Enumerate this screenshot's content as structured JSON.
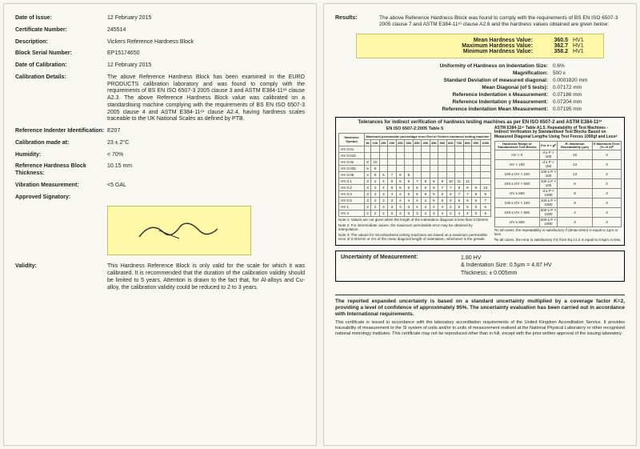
{
  "left": {
    "date_issue_label": "Date of Issue:",
    "date_issue": "12 February 2015",
    "cert_no_label": "Certificate Number:",
    "cert_no": "245514",
    "desc_label": "Description:",
    "desc": "Vickers Reference Hardness Block",
    "serial_label": "Block Serial Number:",
    "serial": "EP15174650",
    "date_cal_label": "Date of Calibration:",
    "date_cal": "12 February 2015",
    "cal_details_label": "Calibration Details:",
    "cal_details": "The above Reference Hardness Block has been examined in the EURO PRODUCTS calibration laboratory and was found to comply with the requirements of BS EN ISO 6507-3 2005 clause 3 and ASTM E384-11ᵉ¹ clause A2.3. The above Reference Hardness Block value was calibrated on a standardising machine complying with the requirements of BS EN ISO 6507-3 2005 clause 4 and ASTM E384-11ᵉ¹ clause A2.4, having hardness scales traceable to the UK National Scales as defined by PTB.",
    "indenter_label": "Reference Indenter Identification:",
    "indenter": "E207",
    "cal_at_label": "Calibration made at:",
    "cal_at": "23 ± 2°C",
    "humidity_label": "Humidity:",
    "humidity": "< 70%",
    "thickness_label": "Reference Hardness Block Thickness:",
    "thickness": "10.15 mm",
    "vib_label": "Vibration Measurement:",
    "vib": "<5 GAL",
    "sig_label": "Approved Signatory:",
    "validity_label": "Validity:",
    "validity": "This Hardness Reference Block is only valid for the scale for which it was calibrated. It is recommended that the duration of the calibration validity should be limited to 5 years. Attention is drawn to the fact that, for Al-alloys and Cu-alloy, the calibration validity could be reduced to 2 to 3 years."
  },
  "right": {
    "results_label": "Results:",
    "results_text": "The above Reference Hardness Block was found to comply with the requirements of BS EN ISO 6507-3 2005 clause 7 and ASTM E384-11ᵉ¹ clause A2.6 and the hardness values obtained are given below:",
    "mean_label": "Mean Hardness Value:",
    "mean_val": "360.5",
    "mean_unit": "HV1",
    "max_label": "Maximum Hardness Value:",
    "max_val": "362.7",
    "max_unit": "HV1",
    "min_label": "Minimum Hardness Value:",
    "min_val": "358.2",
    "min_unit": "HV1",
    "uniformity_label": "Uniformity of Hardness on Indentation Size:",
    "uniformity": "0.6%",
    "mag_label": "Magnification:",
    "mag": "500 x",
    "sd_label": "Standard Deviation of measured diagonal:",
    "sd": "0.0001820 mm",
    "meandiag_label": "Mean Diagonal (of 5 tests):",
    "meandiag": "0.07172 mm",
    "refx_label": "Reference Indentation x Measurement:",
    "refx": "0.07186 mm",
    "refy_label": "Reference Indentation y Measurement:",
    "refy": "0.07204 mm",
    "refmean_label": "Reference Indentation Mean Measurement:",
    "refmean": "0.07195 mm",
    "tol_title": "Tolerances for indirect verification of hardness testing machines as per EN ISO 6507-2 and ASTM E384-11ᵉ¹",
    "iso_title": "EN ISO 6507-2:2005 Table 5",
    "astm_title": "ASTM E384-11ᵉ¹ Table A1.5. Repeatability of Test Machines - Indirect Verification by Standardised Test Blocks Based on Measured Diagonal Lengths Using Test Forces 1000gf and Lessᴬ",
    "iso_header_top": "Maximum permissible percentage error Erel of Vickers hardness testing machine",
    "iso_symbol_head": "Hardness Symbol",
    "iso_rows": [
      "HV 0.01",
      "HV 0.015",
      "HV 0.02",
      "HV 0.025",
      "HV 0.05",
      "HV 0.1",
      "HV 0.2",
      "HV 0.3",
      "HV 0.5",
      "HV 1",
      "HV 2"
    ],
    "iso_cols": [
      "50",
      "100",
      "150",
      "200",
      "250",
      "300",
      "350",
      "400",
      "450",
      "500",
      "600",
      "700",
      "800",
      "900",
      "1000"
    ],
    "iso_note1": "Note 1: Values are not given when the length of the indentation diagonal is less than 0.020mm",
    "iso_note2": "Note 2: For intermediate values, the maximum permissible error may be obtained by interpolation.",
    "iso_note3": "Note 3: The values for microhardness testing machines are based on a maximum permissible error of 0.001mm or 2% of the mean diagonal length of indentation, whichever is the greater.",
    "astm_header": [
      "Hardness Range of Standardised Test Blocks",
      "For d < gᴮ",
      "R₁ Maximum Repeatability (μm)",
      "E Maximum Error (% of d)ᴮ"
    ],
    "astm_rows": [
      [
        "HV > 0",
        "d ≤ P × 100",
        "15",
        "3"
      ],
      [
        "HV < 100",
        "d ≤ P × 150",
        "13",
        "3"
      ],
      [
        "100 ≤ HV < 240",
        "100 ≤ P × 100",
        "13",
        "2"
      ],
      [
        "240 ≤ HV < 600",
        "100 ≤ P × 100",
        "5",
        "2"
      ],
      [
        "HV ≥ 600",
        "d ≤ P × 1000",
        "8",
        "3"
      ],
      [
        "100 ≤ HV < 240",
        "100 ≤ P × 1000",
        "9",
        "3"
      ],
      [
        "240 ≤ HV < 600",
        "500 ≤ P × 1000",
        "4",
        "3"
      ],
      [
        "HV ≥ 600",
        "500 ≤ P × 1000",
        "3",
        "3"
      ]
    ],
    "astm_footA": "ᴬIn all cases, the repeatability is satisfactory if (dmax-dmin) is equal to 1μm or less.",
    "astm_footB": "ᴮIn all cases, the error is satisfactory if E from Eq A1.2 is equal to 0.5μm or less.",
    "uom_label": "Uncertainty of Measurement:",
    "uom_line1": "1.80 HV",
    "uom_line2": "& Indentation Size: 0.5μm = 4.87 HV",
    "uom_line3": "Thickness: ± 0.005mm",
    "footer_bold": "The reported expanded uncertainty is based on a standard uncertainty multiplied by a coverage factor K=2, providing a level of confidence of approximately 95%. The uncertainty evaluation has been carried out in accordance with International requirements.",
    "footer_small": "This certificate is issued in accordance with the laboratory accreditation requirements of the United Kingdom Accreditation Service. It provides traceability of measurement to the SI system of units and/or to units of measurement realised at the National Physical Laboratory or other recognised national metrology institutes. This certificate may not be reproduced other than in full, except with the prior written approval of the issuing laboratory."
  },
  "colors": {
    "highlight": "#fff8a8",
    "page_bg": "#faf8f2",
    "border": "#000000"
  }
}
